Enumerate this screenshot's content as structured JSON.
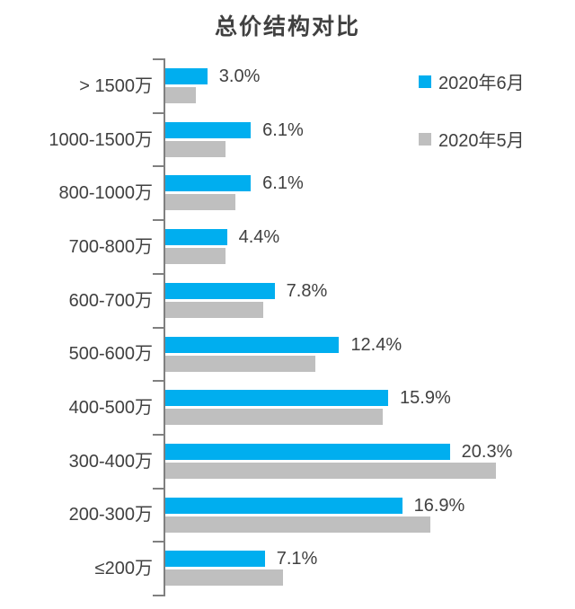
{
  "chart_data": {
    "type": "bar",
    "orientation": "horizontal",
    "title": "总价结构对比",
    "categories": [
      "> 1500万",
      "1000-1500万",
      "800-1000万",
      "700-800万",
      "600-700万",
      "500-600万",
      "400-500万",
      "300-400万",
      "200-300万",
      "≤200万"
    ],
    "series": [
      {
        "name": "2020年6月",
        "color": "#00AEEF",
        "values": [
          3.0,
          6.1,
          6.1,
          4.4,
          7.8,
          12.4,
          15.9,
          20.3,
          16.9,
          7.1
        ],
        "data_labels": [
          "3.0%",
          "6.1%",
          "6.1%",
          "4.4%",
          "7.8%",
          "12.4%",
          "15.9%",
          "20.3%",
          "16.9%",
          "7.1%"
        ]
      },
      {
        "name": "2020年5月",
        "color": "#BFBFBF",
        "values": [
          2.2,
          4.3,
          5.0,
          4.3,
          7.0,
          10.7,
          15.5,
          23.6,
          18.9,
          8.4
        ],
        "data_labels": null
      }
    ],
    "xlim": [
      0,
      24
    ],
    "grid": false,
    "x_axis_visible": false,
    "legend_position": "top-right",
    "styles": {
      "text_color": "#404040",
      "axis_color": "#808080",
      "background": "#FFFFFF"
    }
  }
}
